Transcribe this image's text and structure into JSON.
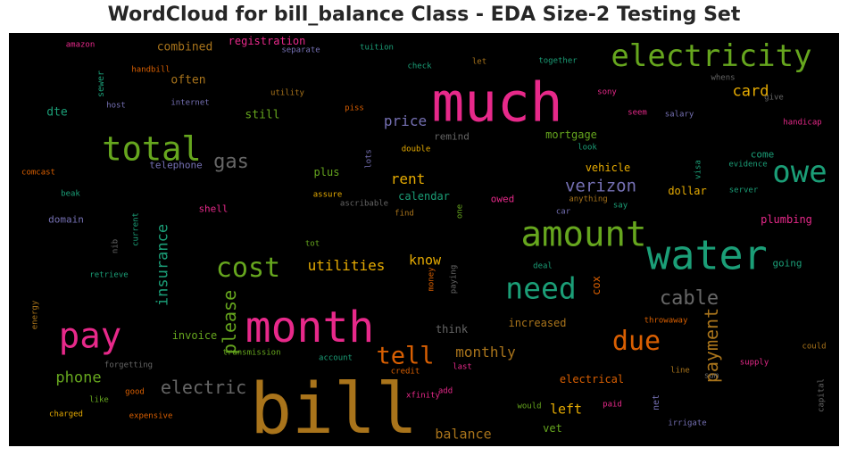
{
  "chart_data": {
    "type": "wordcloud",
    "title": "WordCloud for bill_balance Class - EDA Size-2 Testing Set",
    "background": "#000000",
    "words": [
      {
        "text": "bill",
        "weight": 1.0,
        "color": "#a9741b",
        "orient": "h"
      },
      {
        "text": "much",
        "weight": 0.78,
        "color": "#e7298a",
        "orient": "h"
      },
      {
        "text": "month",
        "weight": 0.62,
        "color": "#e7298a",
        "orient": "h"
      },
      {
        "text": "water",
        "weight": 0.58,
        "color": "#1b9e77",
        "orient": "h"
      },
      {
        "text": "amount",
        "weight": 0.5,
        "color": "#66a61e",
        "orient": "h"
      },
      {
        "text": "total",
        "weight": 0.48,
        "color": "#66a61e",
        "orient": "h"
      },
      {
        "text": "pay",
        "weight": 0.5,
        "color": "#e7298a",
        "orient": "h"
      },
      {
        "text": "electricity",
        "weight": 0.44,
        "color": "#66a61e",
        "orient": "h"
      },
      {
        "text": "owe",
        "weight": 0.44,
        "color": "#1b9e77",
        "orient": "h"
      },
      {
        "text": "need",
        "weight": 0.42,
        "color": "#1b9e77",
        "orient": "h"
      },
      {
        "text": "cost",
        "weight": 0.38,
        "color": "#66a61e",
        "orient": "h"
      },
      {
        "text": "due",
        "weight": 0.38,
        "color": "#d95f02",
        "orient": "h"
      },
      {
        "text": "tell",
        "weight": 0.34,
        "color": "#d95f02",
        "orient": "h"
      },
      {
        "text": "gas",
        "weight": 0.28,
        "color": "#666666",
        "orient": "h"
      },
      {
        "text": "cable",
        "weight": 0.28,
        "color": "#666666",
        "orient": "h"
      },
      {
        "text": "electric",
        "weight": 0.26,
        "color": "#666666",
        "orient": "h"
      },
      {
        "text": "payment",
        "weight": 0.26,
        "color": "#a9741b",
        "orient": "v"
      },
      {
        "text": "please",
        "weight": 0.26,
        "color": "#66a61e",
        "orient": "v"
      },
      {
        "text": "verizon",
        "weight": 0.24,
        "color": "#7570b3",
        "orient": "h"
      },
      {
        "text": "insurance",
        "weight": 0.22,
        "color": "#1b9e77",
        "orient": "v"
      },
      {
        "text": "phone",
        "weight": 0.22,
        "color": "#66a61e",
        "orient": "h"
      },
      {
        "text": "card",
        "weight": 0.22,
        "color": "#e6ab02",
        "orient": "h"
      },
      {
        "text": "utilities",
        "weight": 0.2,
        "color": "#e6ab02",
        "orient": "h"
      },
      {
        "text": "monthly",
        "weight": 0.2,
        "color": "#a9741b",
        "orient": "h"
      },
      {
        "text": "price",
        "weight": 0.2,
        "color": "#7570b3",
        "orient": "h"
      },
      {
        "text": "rent",
        "weight": 0.2,
        "color": "#e6ab02",
        "orient": "h"
      },
      {
        "text": "know",
        "weight": 0.19,
        "color": "#e6ab02",
        "orient": "h"
      },
      {
        "text": "left",
        "weight": 0.19,
        "color": "#e6ab02",
        "orient": "h"
      },
      {
        "text": "balance",
        "weight": 0.19,
        "color": "#a9741b",
        "orient": "h"
      },
      {
        "text": "still",
        "weight": 0.17,
        "color": "#66a61e",
        "orient": "h"
      },
      {
        "text": "dte",
        "weight": 0.17,
        "color": "#1b9e77",
        "orient": "h"
      },
      {
        "text": "often",
        "weight": 0.17,
        "color": "#a9741b",
        "orient": "h"
      },
      {
        "text": "combined",
        "weight": 0.17,
        "color": "#a9741b",
        "orient": "h"
      },
      {
        "text": "registration",
        "weight": 0.16,
        "color": "#e7298a",
        "orient": "h"
      },
      {
        "text": "mortgage",
        "weight": 0.16,
        "color": "#66a61e",
        "orient": "h"
      },
      {
        "text": "vehicle",
        "weight": 0.16,
        "color": "#e6ab02",
        "orient": "h"
      },
      {
        "text": "dollar",
        "weight": 0.16,
        "color": "#e6ab02",
        "orient": "h"
      },
      {
        "text": "calendar",
        "weight": 0.16,
        "color": "#1b9e77",
        "orient": "h"
      },
      {
        "text": "plus",
        "weight": 0.16,
        "color": "#66a61e",
        "orient": "h"
      },
      {
        "text": "plumbing",
        "weight": 0.16,
        "color": "#e7298a",
        "orient": "h"
      },
      {
        "text": "increased",
        "weight": 0.16,
        "color": "#a9741b",
        "orient": "h"
      },
      {
        "text": "think",
        "weight": 0.16,
        "color": "#666666",
        "orient": "h"
      },
      {
        "text": "invoice",
        "weight": 0.15,
        "color": "#66a61e",
        "orient": "h"
      },
      {
        "text": "electrical",
        "weight": 0.15,
        "color": "#d95f02",
        "orient": "h"
      },
      {
        "text": "cox",
        "weight": 0.15,
        "color": "#d95f02",
        "orient": "v"
      },
      {
        "text": "vet",
        "weight": 0.15,
        "color": "#66a61e",
        "orient": "h"
      },
      {
        "text": "remind",
        "weight": 0.14,
        "color": "#666666",
        "orient": "h"
      },
      {
        "text": "telephone",
        "weight": 0.14,
        "color": "#7570b3",
        "orient": "h"
      },
      {
        "text": "owed",
        "weight": 0.14,
        "color": "#e7298a",
        "orient": "h"
      },
      {
        "text": "domain",
        "weight": 0.14,
        "color": "#7570b3",
        "orient": "h"
      },
      {
        "text": "shell",
        "weight": 0.14,
        "color": "#e7298a",
        "orient": "h"
      },
      {
        "text": "going",
        "weight": 0.14,
        "color": "#1b9e77",
        "orient": "h"
      },
      {
        "text": "come",
        "weight": 0.14,
        "color": "#1b9e77",
        "orient": "h"
      },
      {
        "text": "sewer",
        "weight": 0.13,
        "color": "#1b9e77",
        "orient": "v"
      },
      {
        "text": "energy",
        "weight": 0.12,
        "color": "#a9741b",
        "orient": "v"
      },
      {
        "text": "net",
        "weight": 0.13,
        "color": "#7570b3",
        "orient": "v"
      },
      {
        "text": "utility",
        "weight": 0.1,
        "color": "#a9741b",
        "orient": "h"
      },
      {
        "text": "amazon",
        "weight": 0.1,
        "color": "#e7298a",
        "orient": "h"
      },
      {
        "text": "separate",
        "weight": 0.1,
        "color": "#7570b3",
        "orient": "h"
      },
      {
        "text": "tuition",
        "weight": 0.1,
        "color": "#1b9e77",
        "orient": "h"
      },
      {
        "text": "handbill",
        "weight": 0.1,
        "color": "#d95f02",
        "orient": "h"
      },
      {
        "text": "check",
        "weight": 0.1,
        "color": "#1b9e77",
        "orient": "h"
      },
      {
        "text": "let",
        "weight": 0.1,
        "color": "#a9741b",
        "orient": "h"
      },
      {
        "text": "together",
        "weight": 0.1,
        "color": "#1b9e77",
        "orient": "h"
      },
      {
        "text": "whens",
        "weight": 0.1,
        "color": "#666666",
        "orient": "h"
      },
      {
        "text": "sony",
        "weight": 0.1,
        "color": "#e7298a",
        "orient": "h"
      },
      {
        "text": "give",
        "weight": 0.1,
        "color": "#666666",
        "orient": "h"
      },
      {
        "text": "host",
        "weight": 0.1,
        "color": "#7570b3",
        "orient": "h"
      },
      {
        "text": "internet",
        "weight": 0.1,
        "color": "#7570b3",
        "orient": "h"
      },
      {
        "text": "piss",
        "weight": 0.1,
        "color": "#d95f02",
        "orient": "h"
      },
      {
        "text": "seem",
        "weight": 0.1,
        "color": "#e7298a",
        "orient": "h"
      },
      {
        "text": "salary",
        "weight": 0.1,
        "color": "#7570b3",
        "orient": "h"
      },
      {
        "text": "handicap",
        "weight": 0.1,
        "color": "#e7298a",
        "orient": "h"
      },
      {
        "text": "double",
        "weight": 0.1,
        "color": "#e6ab02",
        "orient": "h"
      },
      {
        "text": "look",
        "weight": 0.1,
        "color": "#1b9e77",
        "orient": "h"
      },
      {
        "text": "comcast",
        "weight": 0.1,
        "color": "#d95f02",
        "orient": "h"
      },
      {
        "text": "lots",
        "weight": 0.1,
        "color": "#7570b3",
        "orient": "v"
      },
      {
        "text": "visa",
        "weight": 0.1,
        "color": "#1b9e77",
        "orient": "v"
      },
      {
        "text": "evidence",
        "weight": 0.1,
        "color": "#1b9e77",
        "orient": "h"
      },
      {
        "text": "beak",
        "weight": 0.1,
        "color": "#1b9e77",
        "orient": "h"
      },
      {
        "text": "assure",
        "weight": 0.1,
        "color": "#e6ab02",
        "orient": "h"
      },
      {
        "text": "ascribable",
        "weight": 0.1,
        "color": "#666666",
        "orient": "h"
      },
      {
        "text": "anything",
        "weight": 0.1,
        "color": "#a9741b",
        "orient": "h"
      },
      {
        "text": "server",
        "weight": 0.1,
        "color": "#1b9e77",
        "orient": "h"
      },
      {
        "text": "current",
        "weight": 0.1,
        "color": "#1b9e77",
        "orient": "v"
      },
      {
        "text": "find",
        "weight": 0.1,
        "color": "#a9741b",
        "orient": "h"
      },
      {
        "text": "one",
        "weight": 0.1,
        "color": "#66a61e",
        "orient": "v"
      },
      {
        "text": "car",
        "weight": 0.1,
        "color": "#7570b3",
        "orient": "h"
      },
      {
        "text": "say",
        "weight": 0.1,
        "color": "#1b9e77",
        "orient": "h"
      },
      {
        "text": "nib",
        "weight": 0.1,
        "color": "#666666",
        "orient": "v"
      },
      {
        "text": "tot",
        "weight": 0.1,
        "color": "#66a61e",
        "orient": "h"
      },
      {
        "text": "retrieve",
        "weight": 0.1,
        "color": "#1b9e77",
        "orient": "h"
      },
      {
        "text": "money",
        "weight": 0.1,
        "color": "#d95f02",
        "orient": "v"
      },
      {
        "text": "paying",
        "weight": 0.1,
        "color": "#666666",
        "orient": "v"
      },
      {
        "text": "deal",
        "weight": 0.1,
        "color": "#1b9e77",
        "orient": "h"
      },
      {
        "text": "throwaway",
        "weight": 0.1,
        "color": "#d95f02",
        "orient": "h"
      },
      {
        "text": "could",
        "weight": 0.1,
        "color": "#a9741b",
        "orient": "h"
      },
      {
        "text": "transmission",
        "weight": 0.1,
        "color": "#66a61e",
        "orient": "h"
      },
      {
        "text": "account",
        "weight": 0.1,
        "color": "#1b9e77",
        "orient": "h"
      },
      {
        "text": "credit",
        "weight": 0.1,
        "color": "#d95f02",
        "orient": "h"
      },
      {
        "text": "last",
        "weight": 0.1,
        "color": "#e7298a",
        "orient": "h"
      },
      {
        "text": "forgetting",
        "weight": 0.1,
        "color": "#666666",
        "orient": "h"
      },
      {
        "text": "supply",
        "weight": 0.1,
        "color": "#e7298a",
        "orient": "h"
      },
      {
        "text": "line",
        "weight": 0.1,
        "color": "#a9741b",
        "orient": "h"
      },
      {
        "text": "sum",
        "weight": 0.1,
        "color": "#666666",
        "orient": "h"
      },
      {
        "text": "good",
        "weight": 0.1,
        "color": "#d95f02",
        "orient": "h"
      },
      {
        "text": "xfinity",
        "weight": 0.1,
        "color": "#e7298a",
        "orient": "h"
      },
      {
        "text": "add",
        "weight": 0.1,
        "color": "#e7298a",
        "orient": "h"
      },
      {
        "text": "like",
        "weight": 0.1,
        "color": "#66a61e",
        "orient": "h"
      },
      {
        "text": "paid",
        "weight": 0.1,
        "color": "#e7298a",
        "orient": "h"
      },
      {
        "text": "would",
        "weight": 0.1,
        "color": "#66a61e",
        "orient": "h"
      },
      {
        "text": "charged",
        "weight": 0.1,
        "color": "#e6ab02",
        "orient": "h"
      },
      {
        "text": "expensive",
        "weight": 0.1,
        "color": "#d95f02",
        "orient": "h"
      },
      {
        "text": "irrigate",
        "weight": 0.1,
        "color": "#7570b3",
        "orient": "h"
      },
      {
        "text": "capital",
        "weight": 0.1,
        "color": "#666666",
        "orient": "v"
      }
    ]
  }
}
